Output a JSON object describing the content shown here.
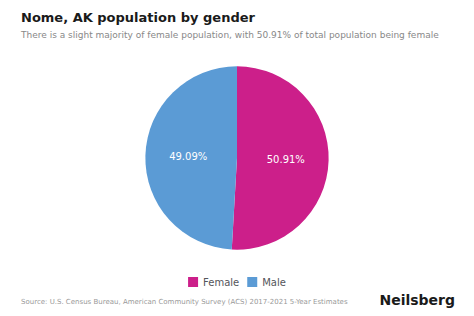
{
  "chart_data": {
    "type": "pie",
    "title": "Nome, AK population by gender",
    "subtitle": "There is a slight majority of female population, with 50.91% of total population being female",
    "categories": [
      "Female",
      "Male"
    ],
    "values": [
      50.91,
      49.09
    ],
    "value_labels": [
      "50.91%",
      "49.09%"
    ],
    "colors": [
      "#CC1F8A",
      "#5B9BD5"
    ],
    "data_labels": true,
    "legend": "bottom",
    "annotations": [
      "Source: U.S. Census Bureau, American Community Survey (ACS) 2017-2021 5-Year Estimates",
      "Neilsberg"
    ]
  }
}
